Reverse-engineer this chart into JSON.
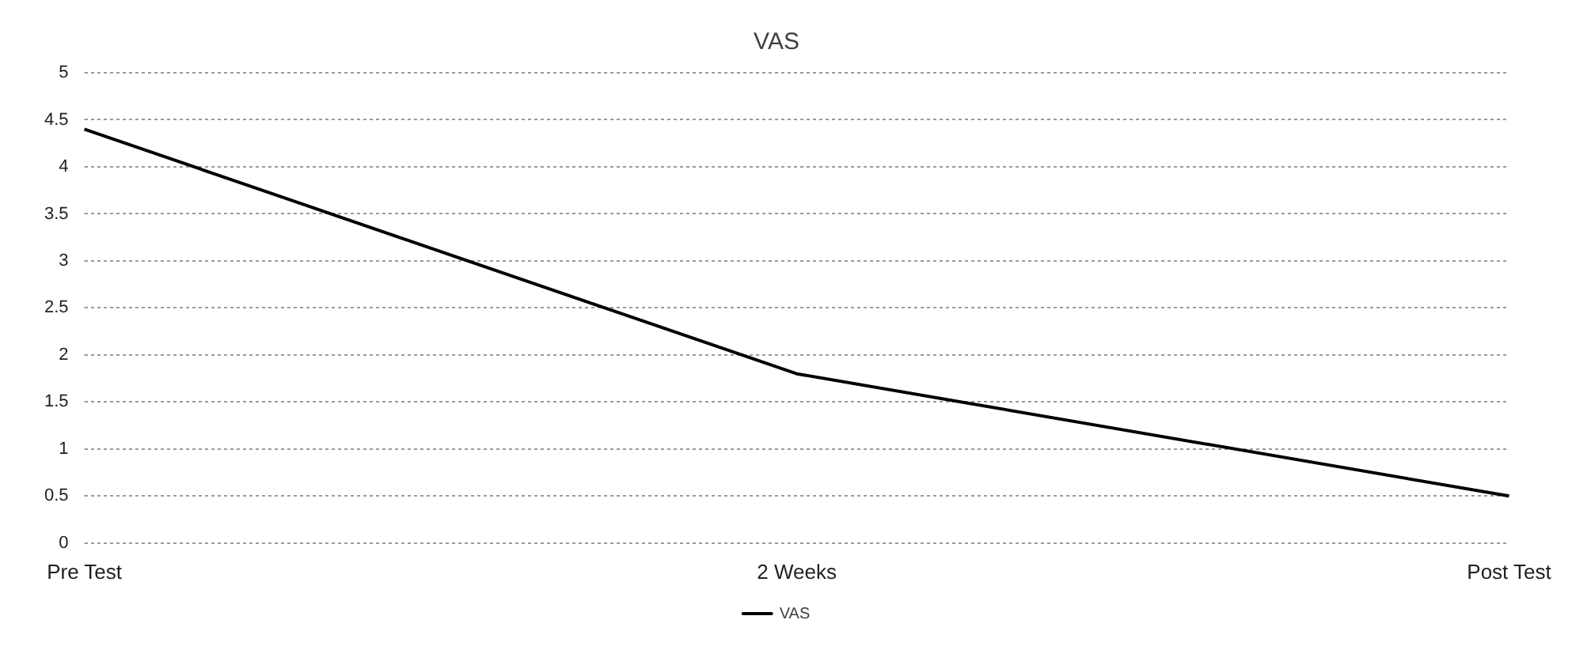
{
  "chart_data": {
    "type": "line",
    "title": "VAS",
    "categories": [
      "Pre Test",
      "2 Weeks",
      "Post Test"
    ],
    "series": [
      {
        "name": "VAS",
        "color": "#000000",
        "values": [
          4.4,
          1.8,
          0.5
        ]
      }
    ],
    "ylim": [
      0,
      5
    ],
    "yticks": [
      0,
      0.5,
      1,
      1.5,
      2,
      2.5,
      3,
      3.5,
      4,
      4.5,
      5
    ],
    "grid": "y",
    "legend": "bottom",
    "marker": "none",
    "line_style": "solid"
  }
}
